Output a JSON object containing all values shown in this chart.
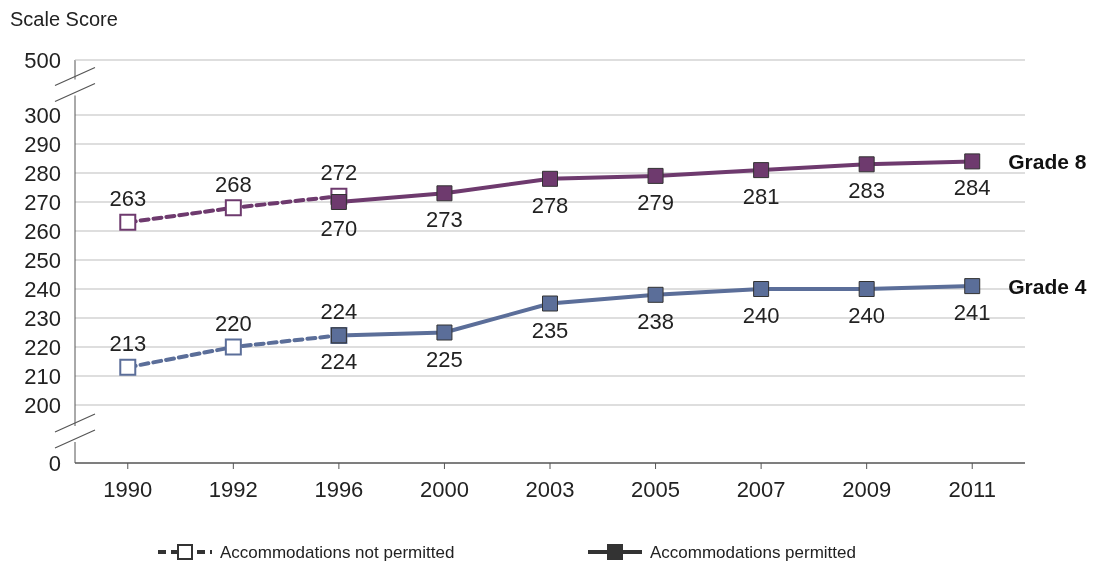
{
  "chart_data": {
    "type": "line",
    "ylabel": "Scale Score",
    "categories": [
      "1990",
      "1992",
      "1996",
      "2000",
      "2003",
      "2005",
      "2007",
      "2009",
      "2011"
    ],
    "series": [
      {
        "color": "#6e3a6e",
        "line_style": "dashed",
        "values": [
          263,
          268,
          272,
          null,
          null,
          null,
          null,
          null,
          null
        ]
      },
      {
        "name": "Grade 8",
        "color": "#6e3a6e",
        "line_style": "solid",
        "values": [
          null,
          null,
          270,
          273,
          278,
          279,
          281,
          283,
          284
        ]
      },
      {
        "color": "#5b6e99",
        "line_style": "dashed",
        "values": [
          213,
          220,
          224,
          null,
          null,
          null,
          null,
          null,
          null
        ]
      },
      {
        "name": "Grade 4",
        "color": "#5b6e99",
        "line_style": "solid",
        "values": [
          null,
          null,
          224,
          225,
          235,
          238,
          240,
          240,
          241
        ]
      }
    ],
    "ylim": [
      200,
      300
    ],
    "yticks": [
      200,
      210,
      220,
      230,
      240,
      250,
      260,
      270,
      280,
      290,
      300
    ],
    "grid": "y",
    "marker": "square",
    "data_labels": true,
    "legend": "right",
    "annotations": [
      "0",
      "500",
      "Accommodations not permitted",
      "Accommodations permitted"
    ]
  }
}
